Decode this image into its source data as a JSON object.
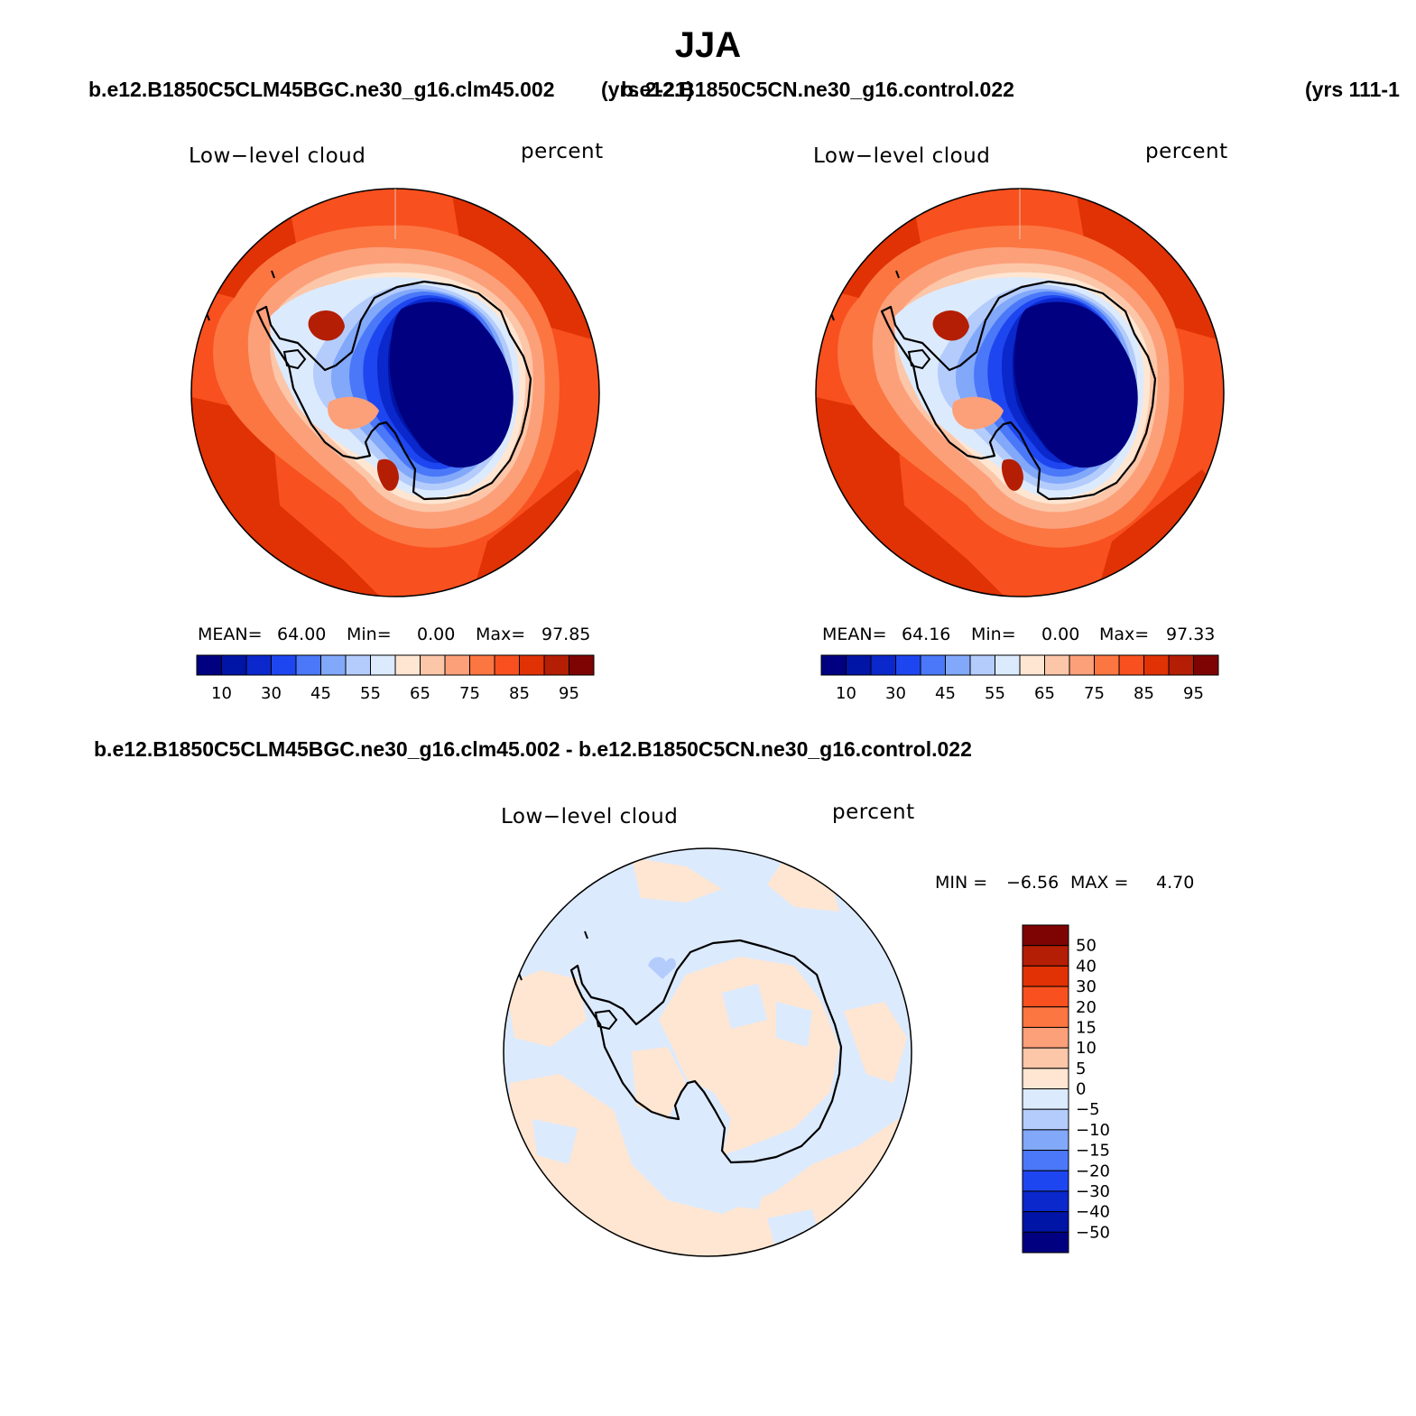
{
  "figure": {
    "title": "JJA",
    "case1_title": "b.e12.B1850C5CLM45BGC.ne30_g16.clm45.002",
    "case1_years": "(yrs 2-21)",
    "case2_title": "b.e12.B1850C5CN.ne30_g16.control.022",
    "case2_years": "(yrs 111-1",
    "diff_title": "b.e12.B1850C5CLM45BGC.ne30_g16.clm45.002 - b.e12.B1850C5CN.ne30_g16.control.022"
  },
  "panel1": {
    "variable": "Low−level cloud",
    "units": "percent",
    "mean_label": "MEAN=",
    "mean": "64.00",
    "min_label": "Min=",
    "min": "0.00",
    "max_label": "Max=",
    "max": "97.85"
  },
  "panel2": {
    "variable": "Low−level cloud",
    "units": "percent",
    "mean_label": "MEAN=",
    "mean": "64.16",
    "min_label": "Min=",
    "min": "0.00",
    "max_label": "Max=",
    "max": "97.33"
  },
  "panel3": {
    "variable": "Low−level cloud",
    "units": "percent",
    "min_label": "MIN =",
    "min": "−6.56",
    "max_label": "MAX =",
    "max": "4.70"
  },
  "colorbar_abs": {
    "colors": [
      "#000080",
      "#0014a6",
      "#0a28cc",
      "#1e46f0",
      "#4a78f8",
      "#82a8fa",
      "#b4ccfc",
      "#dceafe",
      "#fee6d2",
      "#fcc6a8",
      "#fca07a",
      "#fc7642",
      "#f8501e",
      "#e03204",
      "#b41e04",
      "#7e0404"
    ],
    "labels": [
      "10",
      "30",
      "45",
      "55",
      "65",
      "75",
      "85",
      "95"
    ]
  },
  "colorbar_diff": {
    "colors": [
      "#7e0404",
      "#b41e04",
      "#e03204",
      "#f8501e",
      "#fc7642",
      "#fca07a",
      "#fcc6a8",
      "#fee6d2",
      "#dceafe",
      "#b4ccfc",
      "#82a8fa",
      "#4a78f8",
      "#1e46f0",
      "#0a28cc",
      "#0014a6",
      "#000080"
    ],
    "labels": [
      "50",
      "40",
      "30",
      "20",
      "15",
      "10",
      "5",
      "0",
      "−5",
      "−10",
      "−15",
      "−20",
      "−30",
      "−40",
      "−50"
    ]
  }
}
